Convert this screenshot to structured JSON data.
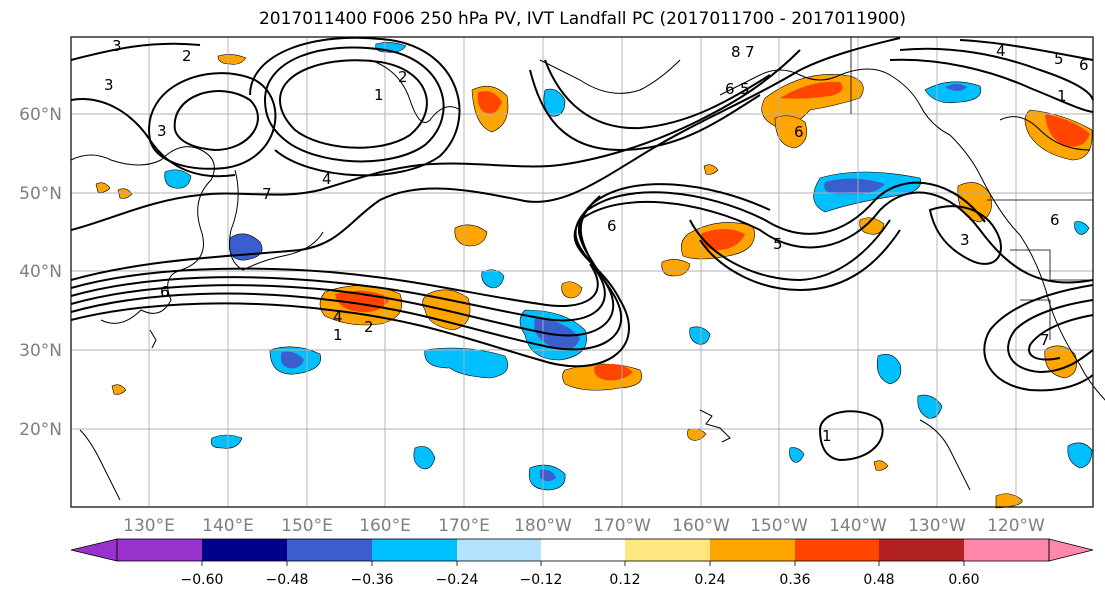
{
  "title": "2017011400 F006 250 hPa PV, IVT Landfall PC (2017011700 - 2017011900)",
  "map": {
    "lat_labels": [
      "60°N",
      "50°N",
      "40°N",
      "30°N",
      "20°N"
    ],
    "lon_labels": [
      "130°E",
      "140°E",
      "150°E",
      "160°E",
      "170°E",
      "180°W",
      "170°W",
      "160°W",
      "150°W",
      "140°W",
      "130°W",
      "120°W"
    ],
    "contour_labels": [
      "3",
      "2",
      "3",
      "3",
      "2",
      "1",
      "4",
      "7",
      "6",
      "4",
      "1",
      "2",
      "6",
      "5",
      "8",
      "7",
      "6",
      "5",
      "6",
      "4",
      "6",
      "5",
      "1",
      "1",
      "6",
      "3",
      "7"
    ],
    "colors": {
      "frame": "#000000",
      "grid": "#b0b0b0",
      "tick_label": "#7f7f7f",
      "positive_shades": [
        "#ffe680",
        "#ffa500",
        "#ff4500",
        "#b22222"
      ],
      "negative_shades": [
        "#add8ff",
        "#00bfff",
        "#3a5fcd",
        "#00008b"
      ]
    }
  },
  "colorbar": {
    "tick_labels": [
      "−0.60",
      "−0.48",
      "−0.36",
      "−0.24",
      "−0.12",
      "0.12",
      "0.24",
      "0.36",
      "0.48",
      "0.60"
    ],
    "colors": [
      "#9932cc",
      "#00008b",
      "#3a5fcd",
      "#00bfff",
      "#b3e3ff",
      "#ffffff",
      "#ffe680",
      "#ffa500",
      "#ff4500",
      "#b22222",
      "#ff88aa"
    ],
    "extend": "both"
  }
}
